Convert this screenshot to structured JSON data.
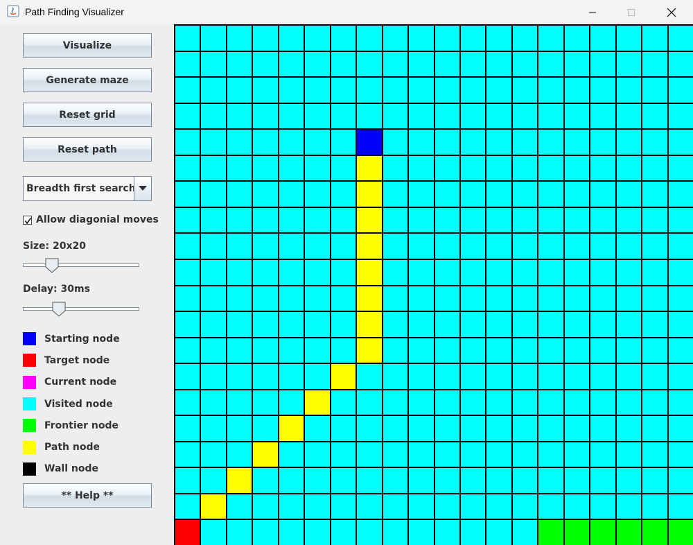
{
  "window": {
    "title": "Path Finding Visualizer",
    "controls": [
      "minimize-icon",
      "maximize-icon",
      "close-icon"
    ]
  },
  "controls": {
    "visualize_label": "Visualize",
    "generate_maze_label": "Generate maze",
    "reset_grid_label": "Reset grid",
    "reset_path_label": "Reset path",
    "algorithm_selected": "Breadth first search",
    "diagonal_label": "Allow diagonial moves",
    "diagonal_checked": true,
    "size_label": "Size: 20x20",
    "size_slider_fraction": 0.25,
    "delay_label": "Delay: 30ms",
    "delay_slider_fraction": 0.31,
    "help_label": "** Help **"
  },
  "legend": [
    {
      "label": "Starting node",
      "color": "#0000ff"
    },
    {
      "label": "Target node",
      "color": "#ff0000"
    },
    {
      "label": "Current node",
      "color": "#ff00ff"
    },
    {
      "label": "Visited node",
      "color": "#00ffff"
    },
    {
      "label": "Frontier node",
      "color": "#00ff00"
    },
    {
      "label": "Path node",
      "color": "#ffff00"
    },
    {
      "label": "Wall node",
      "color": "#000000"
    }
  ],
  "grid": {
    "rows": 20,
    "cols": 20,
    "default_state": "visited",
    "start": [
      4,
      7
    ],
    "target": [
      19,
      0
    ],
    "path": [
      [
        5,
        7
      ],
      [
        6,
        7
      ],
      [
        7,
        7
      ],
      [
        8,
        7
      ],
      [
        9,
        7
      ],
      [
        10,
        7
      ],
      [
        11,
        7
      ],
      [
        12,
        7
      ],
      [
        13,
        6
      ],
      [
        14,
        5
      ],
      [
        15,
        4
      ],
      [
        16,
        3
      ],
      [
        17,
        2
      ],
      [
        18,
        1
      ]
    ],
    "frontier": [
      [
        19,
        14
      ],
      [
        19,
        15
      ],
      [
        19,
        16
      ],
      [
        19,
        17
      ],
      [
        19,
        18
      ],
      [
        19,
        19
      ]
    ],
    "colors": {
      "start": "#0000ff",
      "target": "#ff0000",
      "visited": "#00ffff",
      "frontier": "#00ff00",
      "path": "#ffff00"
    }
  }
}
